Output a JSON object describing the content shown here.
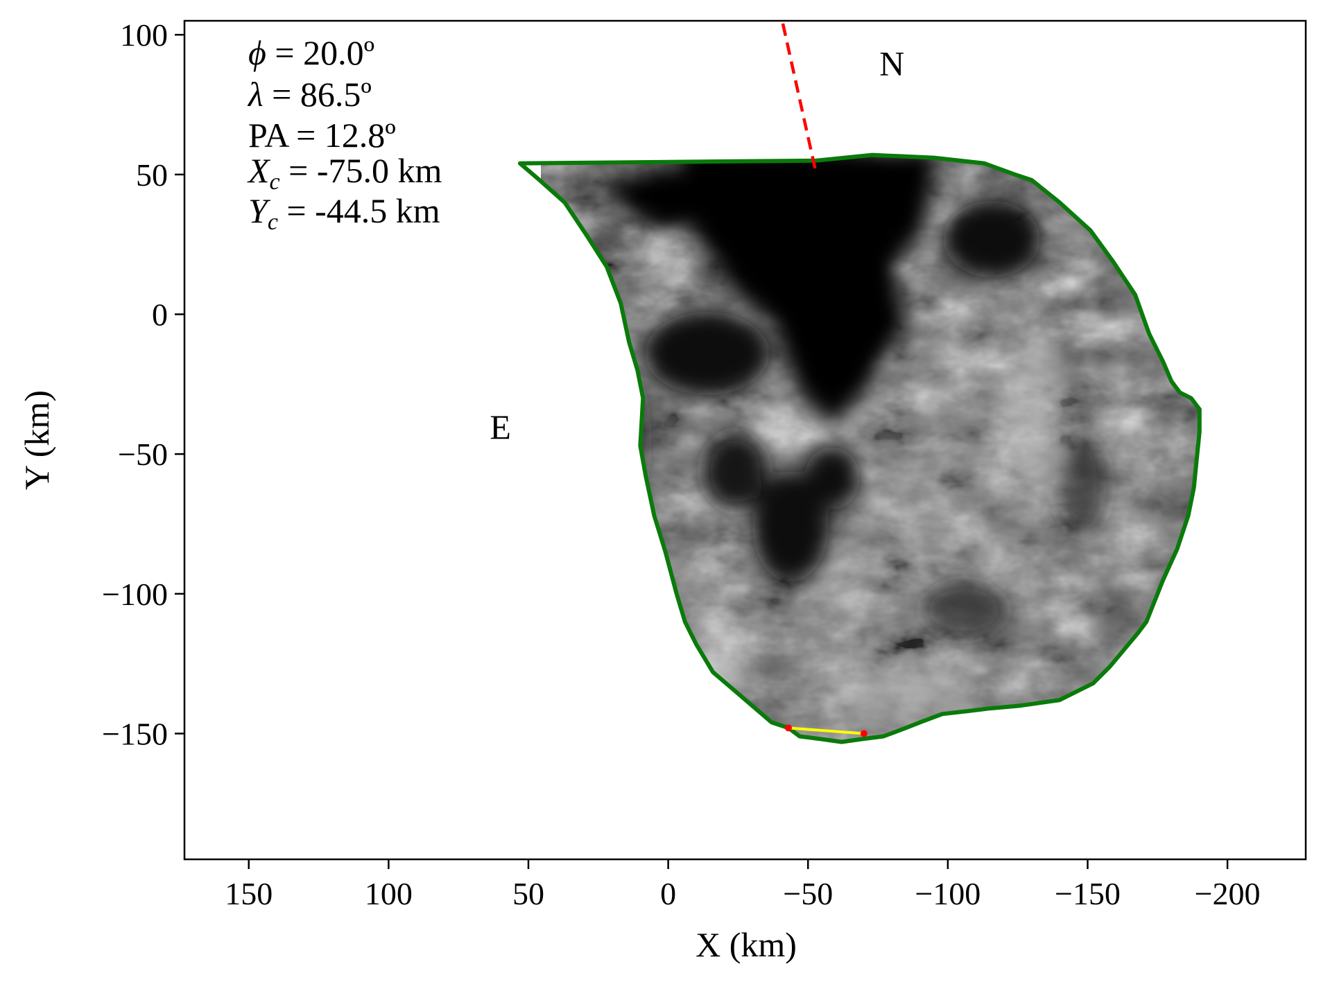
{
  "chart_data": {
    "type": "scatter",
    "title": "",
    "xlabel": "X (km)",
    "ylabel": "Y (km)",
    "xlim": [
      173,
      -228
    ],
    "ylim": [
      -195,
      105
    ],
    "x_inverted": true,
    "grid": false,
    "x_ticks": [
      {
        "value": 150,
        "label": "150"
      },
      {
        "value": 100,
        "label": "100"
      },
      {
        "value": 50,
        "label": "50"
      },
      {
        "value": 0,
        "label": "0"
      },
      {
        "value": -50,
        "label": "−50"
      },
      {
        "value": -100,
        "label": "−100"
      },
      {
        "value": -150,
        "label": "−150"
      },
      {
        "value": -200,
        "label": "−200"
      }
    ],
    "y_ticks": [
      {
        "value": 100,
        "label": "100"
      },
      {
        "value": 50,
        "label": "50"
      },
      {
        "value": 0,
        "label": "0"
      },
      {
        "value": -50,
        "label": "−50"
      },
      {
        "value": -100,
        "label": "−100"
      },
      {
        "value": -150,
        "label": "−150"
      }
    ],
    "annotations": {
      "phi": {
        "symbol": "ϕ",
        "text": " = 20.0º"
      },
      "lambda": {
        "symbol": "λ",
        "text": " = 86.5º"
      },
      "pa": {
        "text": "PA = 12.8º"
      },
      "xc": {
        "symbol": "X",
        "sub": "c",
        "text": " = -75.0 km"
      },
      "yc": {
        "symbol": "Y",
        "sub": "c",
        "text": " = -44.5 km"
      }
    },
    "north_label": {
      "text": "N",
      "x": -80,
      "y": 90
    },
    "east_label": {
      "text": "E",
      "x": 60,
      "y": -40
    },
    "north_pole_line": {
      "color": "#ff0000",
      "style": "dashed",
      "x": [
        -41,
        -53
      ],
      "y": [
        104,
        50
      ]
    },
    "limb_outline": {
      "color": "#0a7a0a",
      "x": [
        -53,
        -73,
        -95,
        -113,
        -124,
        -130,
        -140,
        -151,
        -159,
        -167,
        -172,
        -177,
        -180,
        -183,
        -187,
        -190,
        -190,
        -189,
        -188,
        -186,
        -182,
        -177,
        -175,
        -171,
        -168,
        -163,
        -158,
        -152,
        -140,
        -126,
        -115,
        -107,
        -98,
        -90,
        -85,
        -77,
        -69,
        -62,
        -55,
        -47,
        -43,
        -37,
        -30,
        -23,
        -16,
        -10,
        -6,
        -3,
        1,
        5,
        8,
        10,
        9,
        11,
        14,
        17,
        22,
        29,
        37,
        46,
        53
      ],
      "y": [
        55,
        57,
        56,
        54,
        50,
        48,
        40,
        30,
        19,
        7,
        -7,
        -17,
        -24,
        -28,
        -30,
        -34,
        -42,
        -52,
        -62,
        -72,
        -84,
        -95,
        -100,
        -110,
        -114,
        -120,
        -126,
        -132,
        -138,
        -140,
        -141,
        -142,
        -143,
        -146,
        -148,
        -151,
        -152,
        -153,
        -152,
        -151,
        -148,
        -146,
        -140,
        -134,
        -128,
        -118,
        -110,
        -100,
        -85,
        -72,
        -58,
        -47,
        -30,
        -20,
        -10,
        4,
        17,
        28,
        40,
        48,
        54
      ]
    },
    "chord": {
      "color": "#ffff00",
      "end_color": "#ff0000",
      "x": [
        -43,
        -70
      ],
      "y": [
        -148,
        -150
      ]
    }
  }
}
